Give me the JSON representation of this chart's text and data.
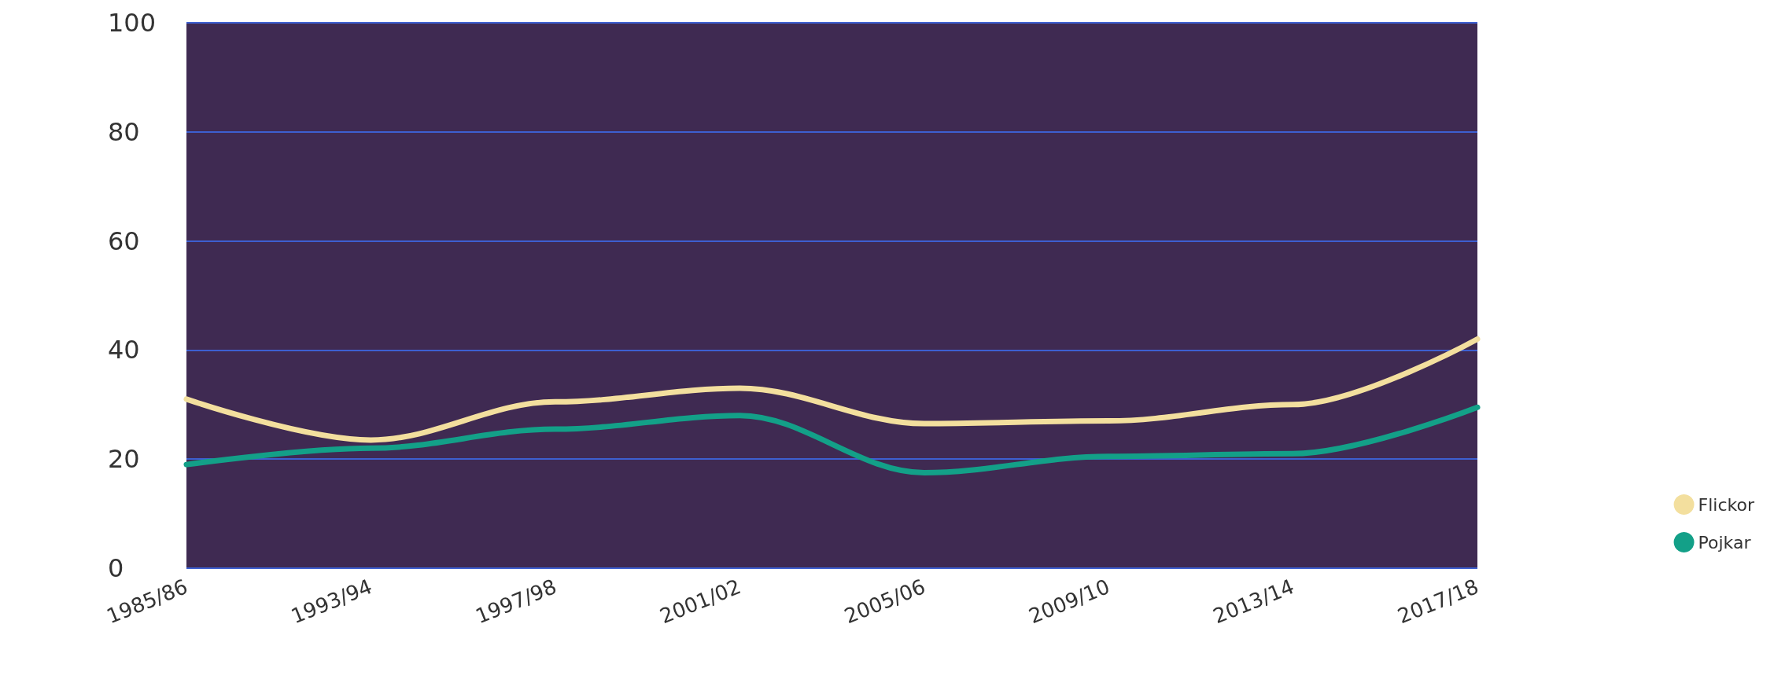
{
  "chart_data": {
    "type": "line",
    "categories": [
      "1985/86",
      "1993/94",
      "1997/98",
      "2001/02",
      "2005/06",
      "2009/10",
      "2013/14",
      "2017/18"
    ],
    "series": [
      {
        "name": "Flickor",
        "color": "#f3df9e",
        "values": [
          31,
          23.5,
          30.5,
          33,
          26.5,
          27,
          30,
          42
        ]
      },
      {
        "name": "Pojkar",
        "color": "#13a088",
        "values": [
          19,
          22,
          25.5,
          28,
          17.5,
          20.5,
          21,
          29.5
        ]
      }
    ],
    "ylim": [
      0,
      100
    ],
    "yticks": [
      0,
      20,
      40,
      60,
      80,
      100
    ],
    "grid": "y",
    "legend": "right",
    "marker": "none",
    "line_style": "solid"
  }
}
